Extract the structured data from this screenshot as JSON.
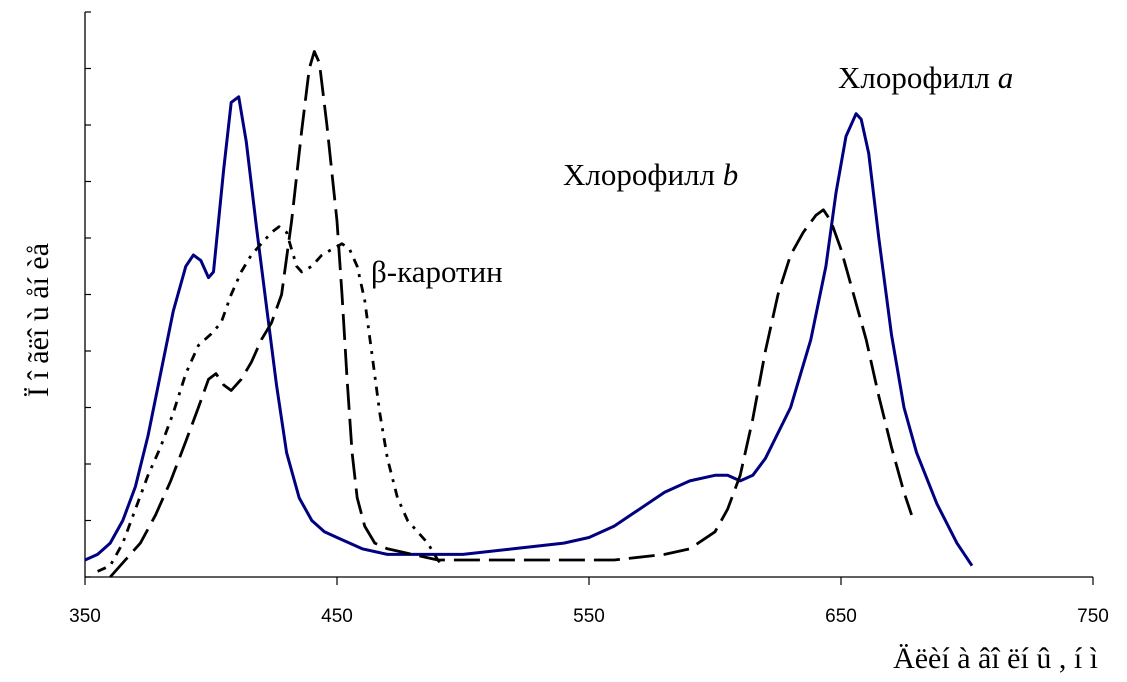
{
  "chart_data": {
    "type": "line",
    "title": "",
    "xlabel": "Äëèí à âî ëí û , í ì",
    "ylabel": "Ï î ãëî ù åí èå",
    "xlim": [
      350,
      750
    ],
    "ylim": [
      0,
      100
    ],
    "x_ticks": [
      "350",
      "450",
      "550",
      "650",
      "750"
    ],
    "y_ticks_labeled": false,
    "y_tick_count": 10,
    "grid": false,
    "legend": "none",
    "series": [
      {
        "color": "#000080",
        "style": "solid",
        "points": [
          [
            350,
            3
          ],
          [
            355,
            4
          ],
          [
            360,
            6
          ],
          [
            365,
            10
          ],
          [
            370,
            16
          ],
          [
            375,
            25
          ],
          [
            380,
            36
          ],
          [
            385,
            47
          ],
          [
            390,
            55
          ],
          [
            393,
            57
          ],
          [
            396,
            56
          ],
          [
            399,
            53
          ],
          [
            401,
            54
          ],
          [
            405,
            72
          ],
          [
            408,
            84
          ],
          [
            411,
            85
          ],
          [
            414,
            77
          ],
          [
            418,
            62
          ],
          [
            422,
            48
          ],
          [
            426,
            34
          ],
          [
            430,
            22
          ],
          [
            435,
            14
          ],
          [
            440,
            10
          ],
          [
            445,
            8
          ],
          [
            450,
            7
          ],
          [
            455,
            6
          ],
          [
            460,
            5
          ],
          [
            470,
            4
          ],
          [
            480,
            4
          ],
          [
            500,
            4
          ],
          [
            520,
            5
          ],
          [
            540,
            6
          ],
          [
            550,
            7
          ],
          [
            560,
            9
          ],
          [
            570,
            12
          ],
          [
            580,
            15
          ],
          [
            590,
            17
          ],
          [
            600,
            18
          ],
          [
            605,
            18
          ],
          [
            610,
            17
          ],
          [
            615,
            18
          ],
          [
            620,
            21
          ],
          [
            630,
            30
          ],
          [
            638,
            42
          ],
          [
            644,
            55
          ],
          [
            648,
            68
          ],
          [
            652,
            78
          ],
          [
            656,
            82
          ],
          [
            658,
            81
          ],
          [
            661,
            75
          ],
          [
            665,
            60
          ],
          [
            670,
            43
          ],
          [
            675,
            30
          ],
          [
            680,
            22
          ],
          [
            688,
            13
          ],
          [
            696,
            6
          ],
          [
            702,
            2
          ]
        ]
      },
      {
        "color": "#000000",
        "style": "long-dash",
        "points": [
          [
            360,
            0
          ],
          [
            366,
            3
          ],
          [
            372,
            6
          ],
          [
            378,
            11
          ],
          [
            384,
            17
          ],
          [
            390,
            24
          ],
          [
            395,
            30
          ],
          [
            399,
            35
          ],
          [
            402,
            36
          ],
          [
            405,
            34
          ],
          [
            408,
            33
          ],
          [
            412,
            35
          ],
          [
            416,
            38
          ],
          [
            420,
            42
          ],
          [
            424,
            45
          ],
          [
            428,
            50
          ],
          [
            432,
            63
          ],
          [
            436,
            79
          ],
          [
            439,
            90
          ],
          [
            441,
            93
          ],
          [
            443,
            91
          ],
          [
            446,
            80
          ],
          [
            450,
            63
          ],
          [
            452,
            50
          ],
          [
            454,
            35
          ],
          [
            456,
            22
          ],
          [
            458,
            14
          ],
          [
            461,
            9
          ],
          [
            465,
            6
          ],
          [
            470,
            5
          ],
          [
            480,
            4
          ],
          [
            490,
            3
          ],
          [
            500,
            3
          ],
          [
            510,
            3
          ],
          [
            520,
            3
          ],
          [
            540,
            3
          ],
          [
            560,
            3
          ],
          [
            580,
            4
          ],
          [
            590,
            5
          ],
          [
            600,
            8
          ],
          [
            605,
            12
          ],
          [
            610,
            18
          ],
          [
            615,
            28
          ],
          [
            620,
            40
          ],
          [
            625,
            50
          ],
          [
            630,
            57
          ],
          [
            635,
            61
          ],
          [
            640,
            64
          ],
          [
            643,
            65
          ],
          [
            646,
            63
          ],
          [
            650,
            58
          ],
          [
            655,
            50
          ],
          [
            660,
            42
          ],
          [
            665,
            32
          ],
          [
            670,
            23
          ],
          [
            675,
            15
          ],
          [
            678,
            11
          ]
        ]
      },
      {
        "color": "#000000",
        "style": "dash-dot",
        "points": [
          [
            355,
            1
          ],
          [
            360,
            2
          ],
          [
            365,
            6
          ],
          [
            370,
            12
          ],
          [
            375,
            18
          ],
          [
            380,
            23
          ],
          [
            385,
            29
          ],
          [
            390,
            36
          ],
          [
            395,
            41
          ],
          [
            400,
            43
          ],
          [
            404,
            45
          ],
          [
            408,
            50
          ],
          [
            412,
            54
          ],
          [
            416,
            57
          ],
          [
            420,
            59
          ],
          [
            424,
            61
          ],
          [
            427,
            62
          ],
          [
            430,
            61
          ],
          [
            432,
            58
          ],
          [
            434,
            55
          ],
          [
            436,
            54
          ],
          [
            440,
            55
          ],
          [
            444,
            57
          ],
          [
            448,
            58
          ],
          [
            452,
            59
          ],
          [
            455,
            58
          ],
          [
            458,
            55
          ],
          [
            461,
            49
          ],
          [
            464,
            39
          ],
          [
            467,
            29
          ],
          [
            470,
            21
          ],
          [
            474,
            14
          ],
          [
            478,
            10
          ],
          [
            482,
            8
          ],
          [
            486,
            6
          ],
          [
            490,
            3
          ],
          [
            492,
            2
          ]
        ]
      }
    ],
    "annotations": [
      {
        "prefix": "Хлорофилл ",
        "italic": "a"
      },
      {
        "prefix": "Хлорофилл ",
        "italic": "b"
      },
      {
        "prefix": "β-каротин",
        "italic": ""
      }
    ]
  }
}
